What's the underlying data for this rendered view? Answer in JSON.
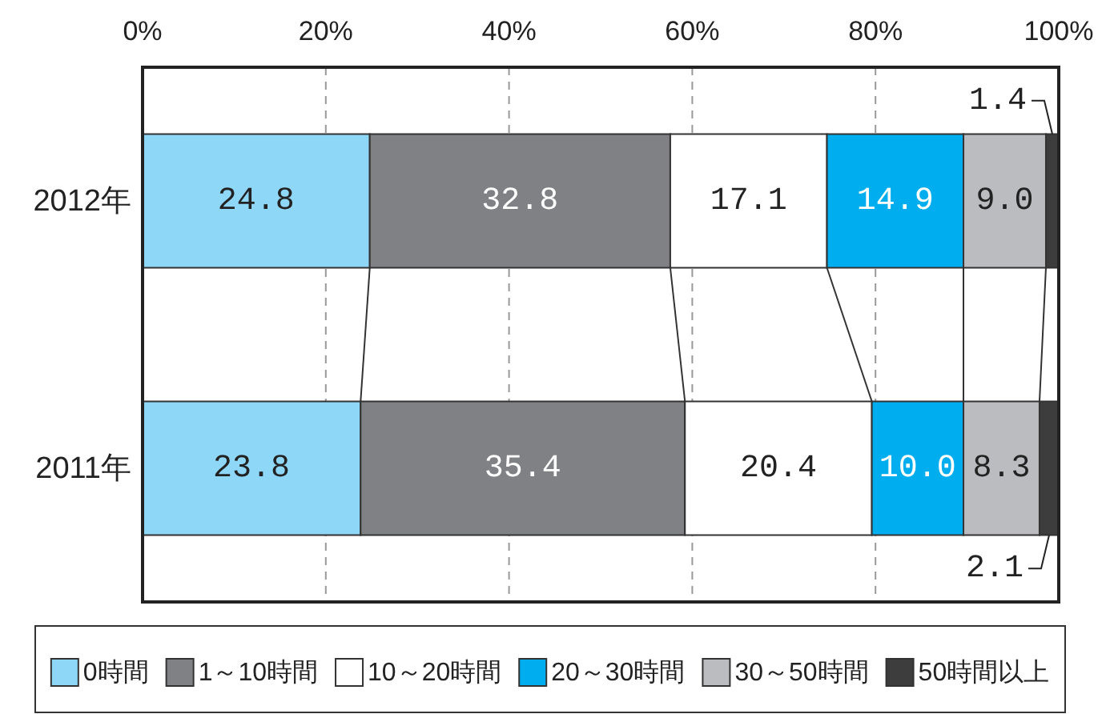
{
  "chart_data": {
    "type": "bar",
    "orientation": "horizontal",
    "stacked": true,
    "categories": [
      "2012年",
      "2011年"
    ],
    "xlim": [
      0,
      100
    ],
    "xticks": [
      {
        "value": 0,
        "label": "0%"
      },
      {
        "value": 20,
        "label": "20%"
      },
      {
        "value": 40,
        "label": "40%"
      },
      {
        "value": 60,
        "label": "60%"
      },
      {
        "value": 80,
        "label": "80%"
      },
      {
        "value": 100,
        "label": "100%"
      }
    ],
    "grid": "x",
    "legend": "bottom",
    "series": [
      {
        "name": "0時間",
        "color": "#8fd7f6",
        "values": [
          24.8,
          23.8
        ],
        "value_labels": [
          "24.8",
          "23.8"
        ]
      },
      {
        "name": "1～10時間",
        "color": "#808184",
        "values": [
          32.8,
          35.4
        ],
        "value_labels": [
          "32.8",
          "35.4"
        ]
      },
      {
        "name": "10～20時間",
        "color": "#ffffff",
        "values": [
          17.1,
          20.4
        ],
        "value_labels": [
          "17.1",
          "20.4"
        ]
      },
      {
        "name": "20～30時間",
        "color": "#00aeef",
        "values": [
          14.9,
          10.0
        ],
        "value_labels": [
          "14.9",
          "10.0"
        ]
      },
      {
        "name": "30～50時間",
        "color": "#bbbcc0",
        "values": [
          9.0,
          8.3
        ],
        "value_labels": [
          "9.0",
          "8.3"
        ]
      },
      {
        "name": "50時間以上",
        "color": "#3d3d3d",
        "values": [
          1.4,
          2.1
        ],
        "value_labels": [
          "1.4",
          "2.1"
        ]
      }
    ]
  }
}
